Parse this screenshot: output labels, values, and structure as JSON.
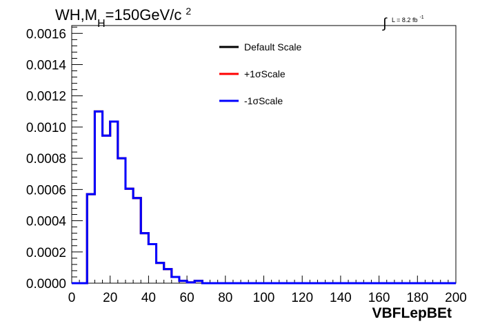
{
  "chart_data": {
    "type": "line",
    "title_main": "WH,M",
    "title_sub": "H",
    "title_rest": "=150GeV/c",
    "title_sup": "2",
    "lumi_integral": "∫",
    "lumi_label": "L = 8.2 fb",
    "lumi_sup": "-1",
    "xlabel": "VBFLepBEt",
    "ylabel": "",
    "xlim": [
      0,
      200
    ],
    "ylim": [
      0,
      0.00165
    ],
    "x_ticks": [
      "0",
      "20",
      "40",
      "60",
      "80",
      "100",
      "120",
      "140",
      "160",
      "180",
      "200"
    ],
    "x_tick_values": [
      0,
      20,
      40,
      60,
      80,
      100,
      120,
      140,
      160,
      180,
      200
    ],
    "y_ticks": [
      "0.0000",
      "0.0002",
      "0.0004",
      "0.0006",
      "0.0008",
      "0.0010",
      "0.0012",
      "0.0014",
      "0.0016"
    ],
    "y_tick_values": [
      0,
      0.0002,
      0.0004,
      0.0006,
      0.0008,
      0.001,
      0.0012,
      0.0014,
      0.0016
    ],
    "bin_width": 4,
    "series": [
      {
        "name": "Default Scale",
        "color": "#000000",
        "values": [
          0,
          0,
          0.00057,
          0.0011,
          0.000945,
          0.001035,
          0.0008,
          0.000605,
          0.000545,
          0.00032,
          0.00025,
          0.00013,
          9e-05,
          4e-05,
          1.5e-05,
          5e-06,
          1.5e-05,
          0,
          0,
          0,
          0,
          0,
          0,
          0,
          0,
          0,
          0,
          0,
          0,
          0,
          0,
          0,
          0,
          0,
          0,
          0,
          0,
          0,
          0,
          0,
          0,
          0,
          0,
          0,
          0,
          0,
          0,
          0,
          0,
          0
        ]
      },
      {
        "name": "+1σScale",
        "color": "#ff0000",
        "values": [
          0,
          0,
          0.00057,
          0.0011,
          0.000945,
          0.001035,
          0.0008,
          0.000605,
          0.000545,
          0.00032,
          0.00025,
          0.00013,
          9e-05,
          4e-05,
          1.5e-05,
          5e-06,
          1.5e-05,
          0,
          0,
          0,
          0,
          0,
          0,
          0,
          0,
          0,
          0,
          0,
          0,
          0,
          0,
          0,
          0,
          0,
          0,
          0,
          0,
          0,
          0,
          0,
          0,
          0,
          0,
          0,
          0,
          0,
          0,
          0,
          0,
          0
        ]
      },
      {
        "name": "-1σScale",
        "color": "#0000ff",
        "values": [
          0,
          0,
          0.00057,
          0.0011,
          0.000945,
          0.001035,
          0.0008,
          0.000605,
          0.000545,
          0.00032,
          0.00025,
          0.00013,
          9e-05,
          4e-05,
          1.5e-05,
          5e-06,
          1.5e-05,
          0,
          0,
          0,
          0,
          0,
          0,
          0,
          0,
          0,
          0,
          0,
          0,
          0,
          0,
          0,
          0,
          0,
          0,
          0,
          0,
          0,
          0,
          0,
          0,
          0,
          0,
          0,
          0,
          0,
          0,
          0,
          0,
          0
        ]
      }
    ],
    "grid": false,
    "legend_position": "top-center"
  }
}
